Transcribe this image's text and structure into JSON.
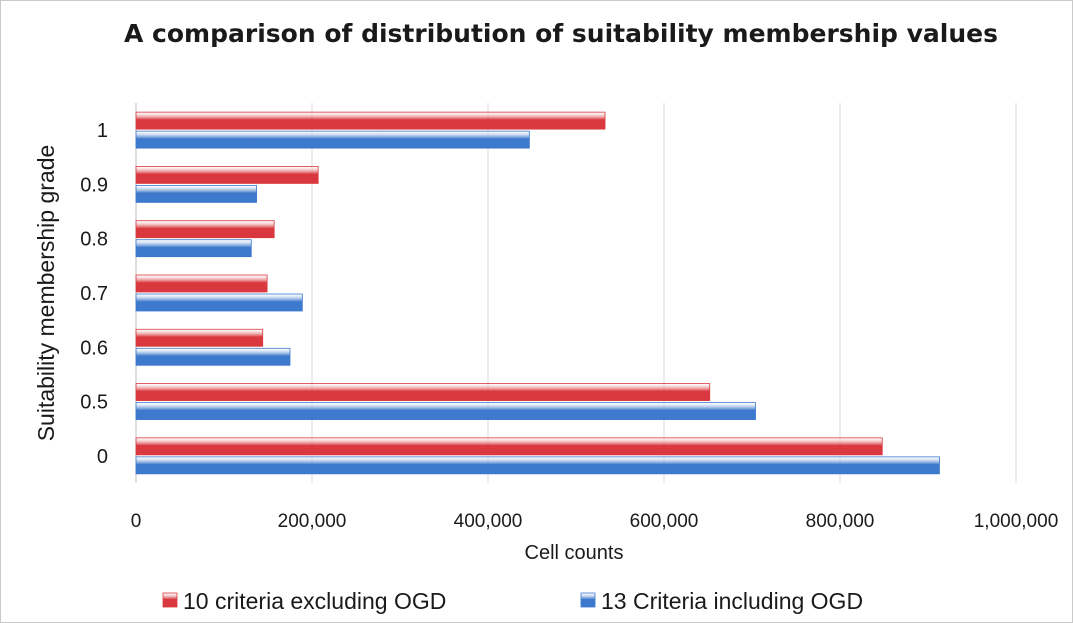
{
  "chart_data": {
    "type": "bar",
    "orientation": "horizontal",
    "title": "A comparison of distribution of suitability membership values",
    "xlabel": "Cell counts",
    "ylabel": "Suitability membership grade",
    "categories": [
      "1",
      "0.9",
      "0.8",
      "0.7",
      "0.6",
      "0.5",
      "0"
    ],
    "series": [
      {
        "name": "10 criteria excluding OGD",
        "color": "#d9393e",
        "values": [
          533000,
          207000,
          157000,
          149000,
          144000,
          652000,
          848000
        ]
      },
      {
        "name": "13 Criteria including OGD",
        "color": "#3d79cc",
        "values": [
          447000,
          137000,
          131000,
          189000,
          175000,
          704000,
          913000
        ]
      }
    ],
    "xlim": [
      0,
      1000000
    ],
    "xticks": [
      0,
      200000,
      400000,
      600000,
      800000,
      1000000
    ],
    "xtick_labels": [
      "0",
      "200,000",
      "400,000",
      "600,000",
      "800,000",
      "1,000,000"
    ],
    "grid": "vertical",
    "legend": "bottom"
  }
}
